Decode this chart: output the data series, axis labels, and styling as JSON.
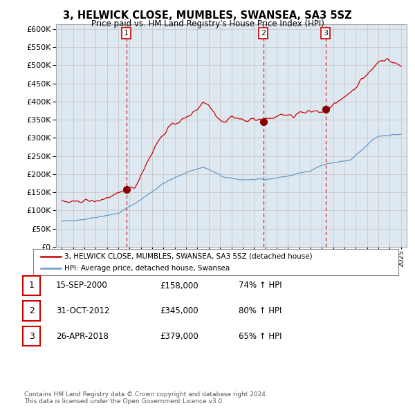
{
  "title": "3, HELWICK CLOSE, MUMBLES, SWANSEA, SA3 5SZ",
  "subtitle": "Price paid vs. HM Land Registry's House Price Index (HPI)",
  "property_color": "#cc0000",
  "hpi_color": "#6699cc",
  "dashed_line_color": "#cc0000",
  "plot_bg_color": "#dde8f0",
  "legend_entries": [
    "3, HELWICK CLOSE, MUMBLES, SWANSEA, SA3 5SZ (detached house)",
    "HPI: Average price, detached house, Swansea"
  ],
  "sales": [
    {
      "num": 1,
      "year": 2000.72,
      "price": 158000,
      "date_str": "15-SEP-2000",
      "pct": "74% ↑ HPI"
    },
    {
      "num": 2,
      "year": 2012.83,
      "price": 345000,
      "date_str": "31-OCT-2012",
      "pct": "80% ↑ HPI"
    },
    {
      "num": 3,
      "year": 2018.33,
      "price": 379000,
      "date_str": "26-APR-2018",
      "pct": "65% ↑ HPI"
    }
  ],
  "footer": "Contains HM Land Registry data © Crown copyright and database right 2024.\nThis data is licensed under the Open Government Licence v3.0.",
  "background_color": "#ffffff",
  "grid_color": "#cccccc",
  "ylim": [
    0,
    612500
  ],
  "yticks": [
    0,
    50000,
    100000,
    150000,
    200000,
    250000,
    300000,
    350000,
    400000,
    450000,
    500000,
    550000,
    600000
  ]
}
